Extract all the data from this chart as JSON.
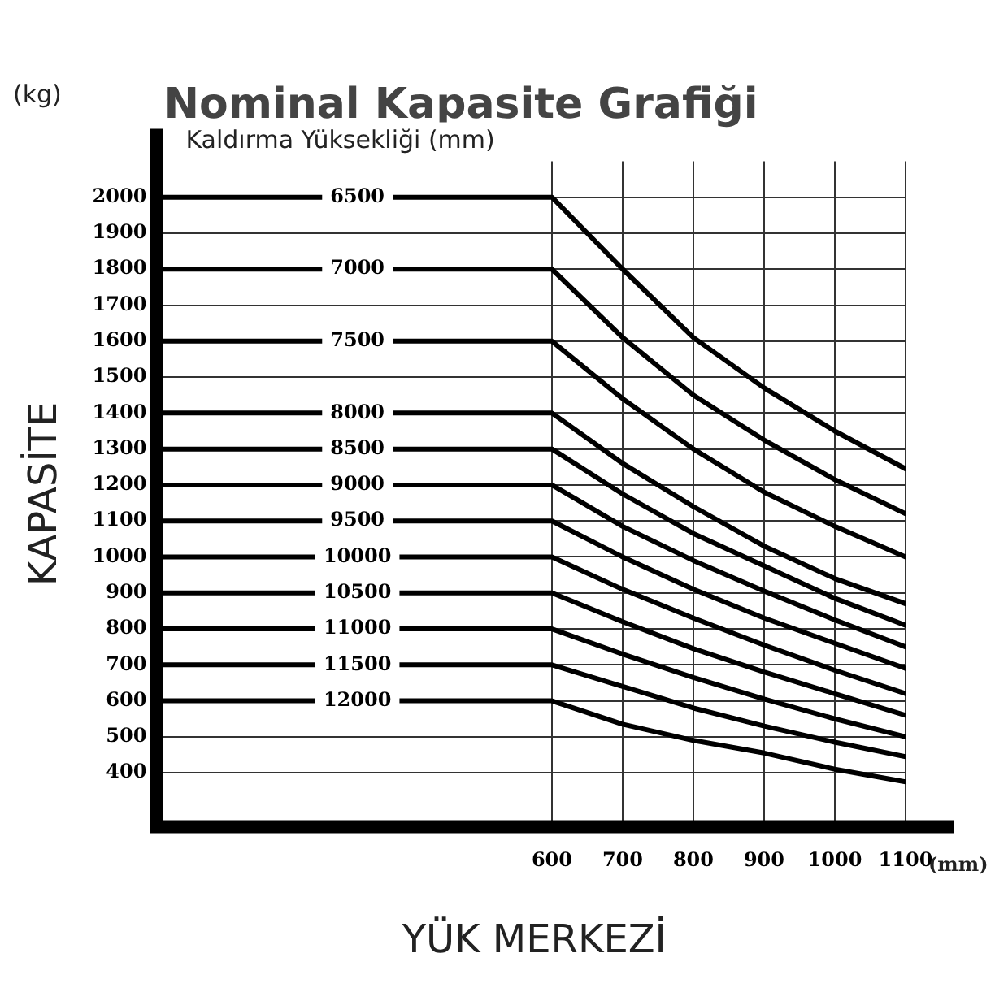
{
  "chart_data": {
    "type": "line",
    "title": "Nominal Kapasite Grafiği",
    "legend_title": "Kaldırma Yüksekliği (mm)",
    "xlabel": "YÜK MERKEZİ",
    "ylabel": "KAPASİTE",
    "annotations": [
      "(kg)",
      "(mm)"
    ],
    "x": [
      50,
      600,
      700,
      800,
      900,
      1000,
      1100
    ],
    "xlim": [
      50,
      1100
    ],
    "xticks": [
      600,
      700,
      800,
      900,
      1000,
      1100
    ],
    "ylim": [
      250,
      2100
    ],
    "yticks": [
      400,
      500,
      600,
      700,
      800,
      900,
      1000,
      1100,
      1200,
      1300,
      1400,
      1500,
      1600,
      1700,
      1800,
      1900,
      2000
    ],
    "grid": true,
    "legend": false,
    "marker": "none",
    "line_style": "solid",
    "series": [
      {
        "name": "6500",
        "color": "#000000",
        "values": [
          2000,
          2000,
          1800,
          1610,
          1470,
          1350,
          1245
        ]
      },
      {
        "name": "7000",
        "color": "#000000",
        "values": [
          1800,
          1800,
          1610,
          1450,
          1325,
          1215,
          1120
        ]
      },
      {
        "name": "7500",
        "color": "#000000",
        "values": [
          1600,
          1600,
          1440,
          1300,
          1180,
          1085,
          1000
        ]
      },
      {
        "name": "8000",
        "color": "#000000",
        "values": [
          1400,
          1400,
          1260,
          1140,
          1030,
          940,
          870
        ]
      },
      {
        "name": "8500",
        "color": "#000000",
        "values": [
          1300,
          1300,
          1175,
          1065,
          975,
          885,
          810
        ]
      },
      {
        "name": "9000",
        "color": "#000000",
        "values": [
          1200,
          1200,
          1085,
          990,
          905,
          825,
          750
        ]
      },
      {
        "name": "9500",
        "color": "#000000",
        "values": [
          1100,
          1100,
          1000,
          910,
          830,
          760,
          690
        ]
      },
      {
        "name": "10000",
        "color": "#000000",
        "values": [
          1000,
          1000,
          910,
          830,
          755,
          685,
          620
        ]
      },
      {
        "name": "10500",
        "color": "#000000",
        "values": [
          900,
          900,
          820,
          745,
          680,
          620,
          560
        ]
      },
      {
        "name": "11000",
        "color": "#000000",
        "values": [
          800,
          800,
          730,
          665,
          605,
          550,
          500
        ]
      },
      {
        "name": "11500",
        "color": "#000000",
        "values": [
          700,
          700,
          640,
          580,
          530,
          485,
          445
        ]
      },
      {
        "name": "12000",
        "color": "#000000",
        "values": [
          600,
          600,
          535,
          490,
          455,
          410,
          375
        ]
      }
    ]
  }
}
